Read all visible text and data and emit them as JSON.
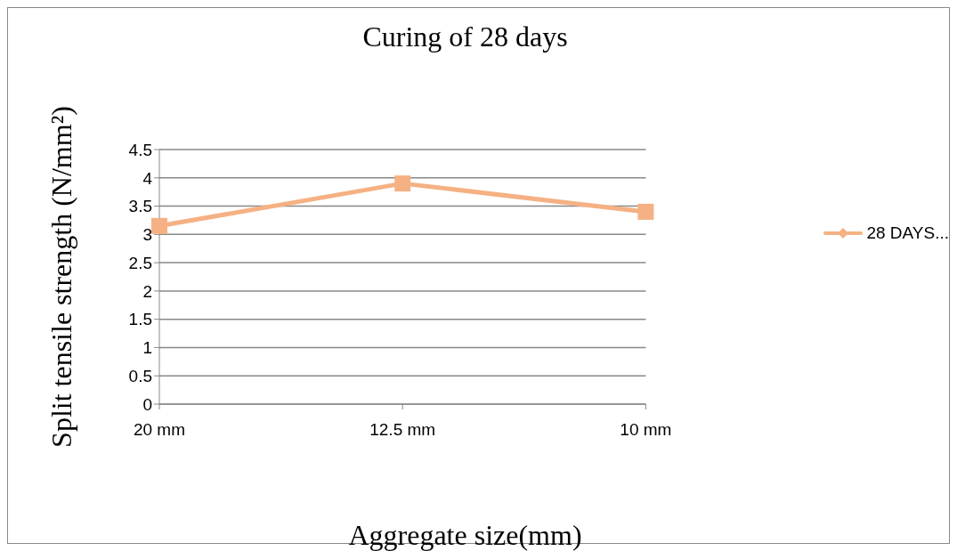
{
  "chart_data": {
    "type": "line",
    "title": "Curing of 28 days",
    "xlabel": "Aggregate size(mm)",
    "ylabel": "Split tensile strength (N/mm²)",
    "categories": [
      "20 mm",
      "12.5 mm",
      "10 mm"
    ],
    "series": [
      {
        "name": "28 DAYS...",
        "color": "#f5b183",
        "values": [
          3.15,
          3.9,
          3.4
        ]
      }
    ],
    "ylim": [
      0,
      4.5
    ],
    "yticks": [
      0,
      0.5,
      1,
      1.5,
      2,
      2.5,
      3,
      3.5,
      4,
      4.5
    ],
    "grid": "y",
    "legend": "right",
    "marker": "square",
    "line_style": "solid"
  }
}
